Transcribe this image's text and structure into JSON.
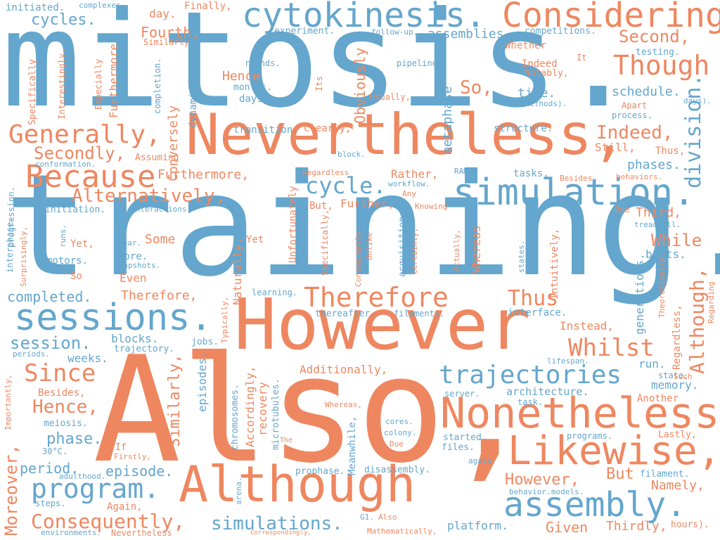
{
  "colors": {
    "blue": "#64a6cd",
    "orange": "#ee8760",
    "background": "#ffffff"
  },
  "words": [
    "mitosis.",
    "training.",
    "Also,",
    "However",
    "Nevertheless,",
    "cytokinesis.",
    "Considering",
    "Although",
    "Nonetheless,",
    "simulation.",
    "Likewise,",
    "sessions.",
    "assembly.",
    "Because",
    "program.",
    "Generally,",
    "trajectories",
    "Therefore",
    "Though",
    "division.",
    "Although,",
    "Since",
    "Alternatively,",
    "Whilst",
    "Consequently,",
    "cycle.",
    "simulations.",
    "Hence,",
    "Secondly,",
    "Second,",
    "Thus",
    "Indeed,",
    "session.",
    "Moreover,",
    "Similarly,",
    "cycles.",
    "completed.",
    "phase.",
    "episode.",
    "period.",
    "Fourth,",
    "Furthermore,",
    "While",
    "However,",
    "But",
    "Namely,",
    "Given",
    "Thirdly,",
    "So,",
    "Obviously",
    "metaphase",
    "Conversely",
    "Furthermore",
    "assemblies",
    "day.",
    "initiated.",
    "Finally,",
    "experiment.",
    "competitions.",
    "schedule.",
    "phases.",
    "Third,",
    "Still,",
    "Thus,",
    "time.",
    "Hence",
    "Instead,",
    "Additionally,",
    "platform.",
    "Therefore,",
    "Some",
    "Even",
    "Yet",
    "Naturally,",
    "Accordingly,",
    "Rather,",
    "Further,",
    "Whereas",
    "Intuitively,",
    "memory.",
    "Regardless,",
    "generations.",
    "bouts.",
    "run.",
    "architecture.",
    "interface.",
    "structure.",
    "transition.",
    "testing.",
    "Whether",
    "Indeed",
    "Notably,",
    "dynamics.",
    "Specifically",
    "Especially",
    "Interestingly,",
    "Similarly",
    "completion.",
    "months.",
    "days.",
    "rounds.",
    "Its",
    "Usually,",
    "pipeline.",
    "It",
    "Apart",
    "process.",
    "(Methods).",
    "days).",
    "follow-up.",
    "complexes.",
    "Clearly,",
    "block.",
    "Assuming",
    "conformation.",
    "workflow.",
    "Any",
    "Knowing",
    "RAM.",
    "tasks.",
    "Besides",
    "behaviors.",
    "One",
    "treadmill.",
    "Regarding",
    "Theoretically,",
    "states.",
    "Actually,",
    "Certainly,",
    "acquisition.",
    "Unlike",
    "Consequently",
    "Specifically,",
    "But,",
    "Unfortunately",
    "interactions.",
    "initiation.",
    "progression.",
    "interphase.",
    "Surprisingly,",
    "runs.",
    "year.",
    "core.",
    "snapshots.",
    "motors.",
    "Yet,",
    "So",
    "learning.",
    "thereafter.",
    "filaments.",
    "blocks.",
    "trajectory.",
    "jobs.",
    "Typically,",
    "weeks.",
    "episodes.",
    "chromosomes.",
    "recovery",
    "microtubules.",
    "lifespan.",
    "state.",
    "Such",
    "Another",
    "task.",
    "server.",
    "Whereas,",
    "cores.",
    "colony.",
    "Due",
    "started.",
    "files.",
    "again.",
    "programs.",
    "Lastly,",
    "filament.",
    "behavior.",
    "models.",
    "hours).",
    "prophase.",
    "disassembly.",
    "Meanwhile,",
    "G1.",
    "Also",
    "Mathematically,",
    "Correspondingly,",
    "Nevertheless",
    "environments.",
    "steps.",
    "Again,",
    "adulthood.",
    "30°C.",
    "If",
    "Firstly,",
    "The",
    "arena.",
    "meiosis.",
    "Besides,",
    "Importantly,",
    "periods.",
    "Regardless"
  ]
}
